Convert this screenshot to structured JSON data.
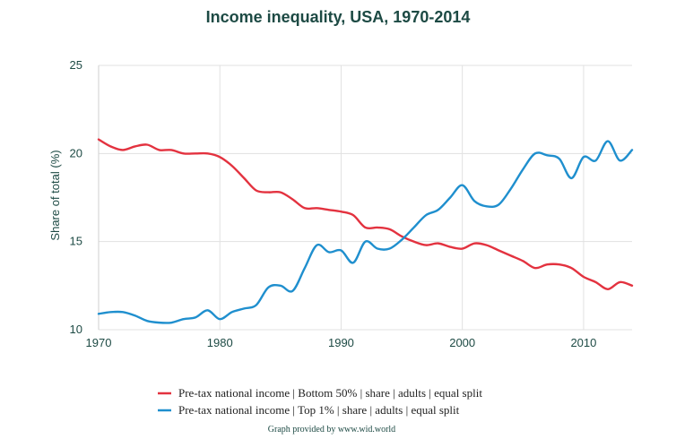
{
  "chart_data": {
    "type": "line",
    "title": "Income inequality, USA, 1970-2014",
    "ylabel": "Share of total (%)",
    "xlabel": "",
    "xlim": [
      1970,
      2014
    ],
    "ylim": [
      10,
      25
    ],
    "x_ticks": [
      "1970",
      "1980",
      "1990",
      "2000",
      "2010"
    ],
    "y_ticks": [
      "10",
      "15",
      "20",
      "25"
    ],
    "grid": true,
    "legend_position": "bottom",
    "credit": "Graph provided by www.wid.world",
    "series": [
      {
        "name": "Pre-tax national income | Bottom 50% | share | adults | equal split",
        "color": "#e3323f",
        "x": [
          1970,
          1971,
          1972,
          1973,
          1974,
          1975,
          1976,
          1977,
          1978,
          1979,
          1980,
          1981,
          1982,
          1983,
          1984,
          1985,
          1986,
          1987,
          1988,
          1989,
          1990,
          1991,
          1992,
          1993,
          1994,
          1995,
          1996,
          1997,
          1998,
          1999,
          2000,
          2001,
          2002,
          2003,
          2004,
          2005,
          2006,
          2007,
          2008,
          2009,
          2010,
          2011,
          2012,
          2013,
          2014
        ],
        "values": [
          20.8,
          20.4,
          20.2,
          20.4,
          20.5,
          20.2,
          20.2,
          20.0,
          20.0,
          20.0,
          19.8,
          19.3,
          18.6,
          17.9,
          17.8,
          17.8,
          17.4,
          16.9,
          16.9,
          16.8,
          16.7,
          16.5,
          15.8,
          15.8,
          15.7,
          15.3,
          15.0,
          14.8,
          14.9,
          14.7,
          14.6,
          14.9,
          14.8,
          14.5,
          14.2,
          13.9,
          13.5,
          13.7,
          13.7,
          13.5,
          13.0,
          12.7,
          12.3,
          12.7,
          12.5
        ]
      },
      {
        "name": "Pre-tax national income | Top 1% | share | adults | equal split",
        "color": "#1f8fce",
        "x": [
          1970,
          1971,
          1972,
          1973,
          1974,
          1975,
          1976,
          1977,
          1978,
          1979,
          1980,
          1981,
          1982,
          1983,
          1984,
          1985,
          1986,
          1987,
          1988,
          1989,
          1990,
          1991,
          1992,
          1993,
          1994,
          1995,
          1996,
          1997,
          1998,
          1999,
          2000,
          2001,
          2002,
          2003,
          2004,
          2005,
          2006,
          2007,
          2008,
          2009,
          2010,
          2011,
          2012,
          2013,
          2014
        ],
        "values": [
          10.9,
          11.0,
          11.0,
          10.8,
          10.5,
          10.4,
          10.4,
          10.6,
          10.7,
          11.1,
          10.6,
          11.0,
          11.2,
          11.4,
          12.4,
          12.5,
          12.2,
          13.5,
          14.8,
          14.4,
          14.5,
          13.8,
          15.0,
          14.6,
          14.6,
          15.1,
          15.8,
          16.5,
          16.8,
          17.5,
          18.2,
          17.3,
          17.0,
          17.1,
          18.0,
          19.1,
          20.0,
          19.9,
          19.7,
          18.6,
          19.8,
          19.6,
          20.7,
          19.6,
          20.2
        ]
      }
    ]
  }
}
